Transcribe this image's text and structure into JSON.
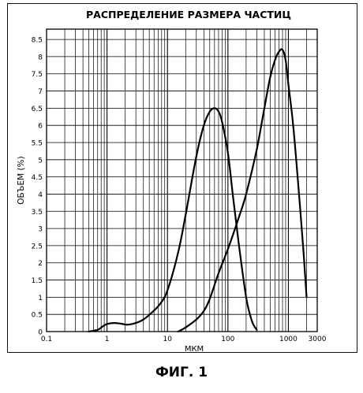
{
  "figure_caption": "ФИГ. 1",
  "chart_data": {
    "type": "line",
    "title": "РАСПРЕДЕЛЕНИЕ РАЗМЕРА ЧАСТИЦ",
    "xlabel": "МКМ",
    "ylabel": "ОБЪЕМ (%)",
    "xscale": "log",
    "xlim": [
      0.1,
      3000
    ],
    "ylim": [
      0,
      8.8
    ],
    "grid": true,
    "x_tick_labels": [
      "0.1",
      "1",
      "10",
      "100",
      "1000",
      "3000"
    ],
    "x_tick_values": [
      0.1,
      1,
      10,
      100,
      1000,
      3000
    ],
    "y_tick_labels": [
      "0",
      "0.5",
      "1",
      "1.5",
      "2",
      "2.5",
      "3",
      "3.5",
      "4",
      "4.5",
      "5",
      "5.5",
      "6",
      "6.5",
      "7",
      "7.5",
      "8",
      "8.5"
    ],
    "y_tick_values": [
      0,
      0.5,
      1,
      1.5,
      2,
      2.5,
      3,
      3.5,
      4,
      4.5,
      5,
      5.5,
      6,
      6.5,
      7,
      7.5,
      8,
      8.5
    ],
    "series": [
      {
        "x": [
          0.5,
          0.7,
          0.85,
          1.0,
          1.3,
          1.7,
          2.2,
          3.0,
          4.0,
          5.5,
          7.5,
          10,
          15,
          20,
          30,
          40,
          50,
          60,
          70,
          80,
          100,
          120,
          150,
          200,
          250,
          300
        ],
        "y": [
          0.0,
          0.05,
          0.15,
          0.22,
          0.25,
          0.23,
          0.2,
          0.25,
          0.35,
          0.55,
          0.8,
          1.2,
          2.3,
          3.4,
          5.1,
          6.0,
          6.4,
          6.5,
          6.4,
          6.1,
          5.2,
          4.0,
          2.6,
          1.0,
          0.3,
          0.05
        ]
      },
      {
        "x": [
          15,
          20,
          30,
          40,
          50,
          70,
          100,
          150,
          200,
          300,
          400,
          500,
          600,
          700,
          800,
          900,
          1000,
          1200,
          1500,
          1800,
          2000
        ],
        "y": [
          0.0,
          0.12,
          0.35,
          0.6,
          0.95,
          1.7,
          2.4,
          3.3,
          4.0,
          5.3,
          6.5,
          7.4,
          7.9,
          8.15,
          8.2,
          7.9,
          7.2,
          6.0,
          4.0,
          2.2,
          1.0
        ]
      }
    ]
  }
}
